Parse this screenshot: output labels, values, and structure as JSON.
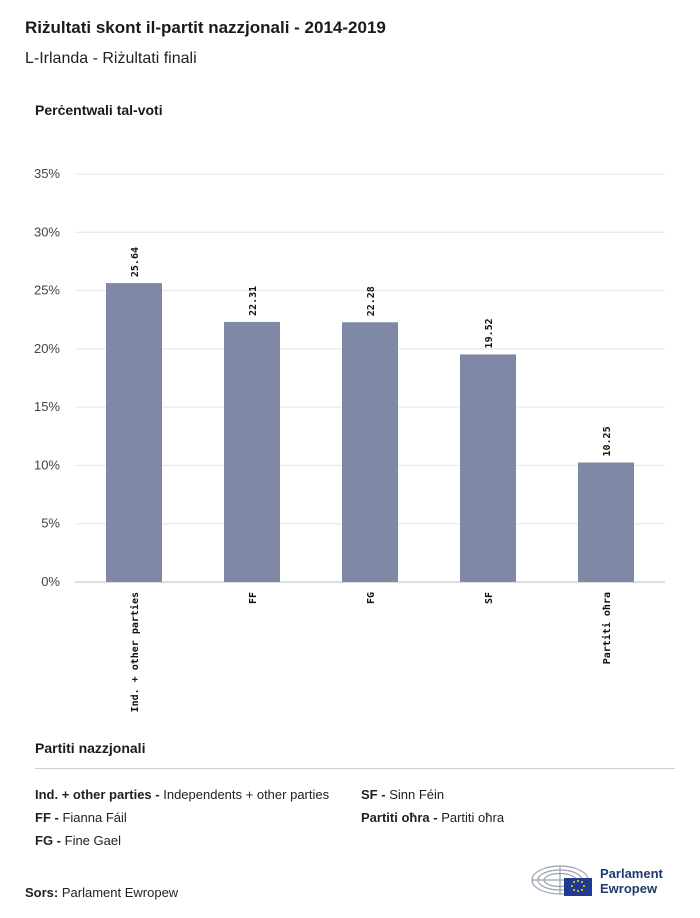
{
  "header": {
    "title": "Riżultati skont il-partit nazzjonali - 2014-2019",
    "subtitle": "L-Irlanda - Riżultati finali"
  },
  "chart_data": {
    "type": "bar",
    "ylabel": "Perċentwali tal-voti",
    "categories": [
      "Ind. + other parties",
      "FF",
      "FG",
      "SF",
      "Partiti oħra"
    ],
    "values": [
      25.64,
      22.31,
      22.28,
      19.52,
      10.25
    ],
    "value_labels": [
      "25.64",
      "22.31",
      "22.28",
      "19.52",
      "10.25"
    ],
    "yticks": [
      "0%",
      "5%",
      "10%",
      "15%",
      "20%",
      "25%",
      "30%",
      "35%"
    ],
    "ylim": [
      0,
      35
    ],
    "grid": true,
    "bar_color": "#7f89a5"
  },
  "legend": {
    "title": "Partiti nazzjonali",
    "items": [
      {
        "abbr": "Ind. + other parties -",
        "full": "Independents + other parties"
      },
      {
        "abbr": "SF -",
        "full": "Sinn Féin"
      },
      {
        "abbr": "FF -",
        "full": "Fianna Fáil"
      },
      {
        "abbr": "Partiti oħra -",
        "full": "Partiti oħra"
      },
      {
        "abbr": "FG -",
        "full": "Fine Gael"
      }
    ]
  },
  "source": {
    "label": "Sors:",
    "value": "Parlament Ewropew"
  },
  "logo": {
    "line1": "Parlament",
    "line2": "Ewropew",
    "icon": "european-parliament-icon"
  }
}
